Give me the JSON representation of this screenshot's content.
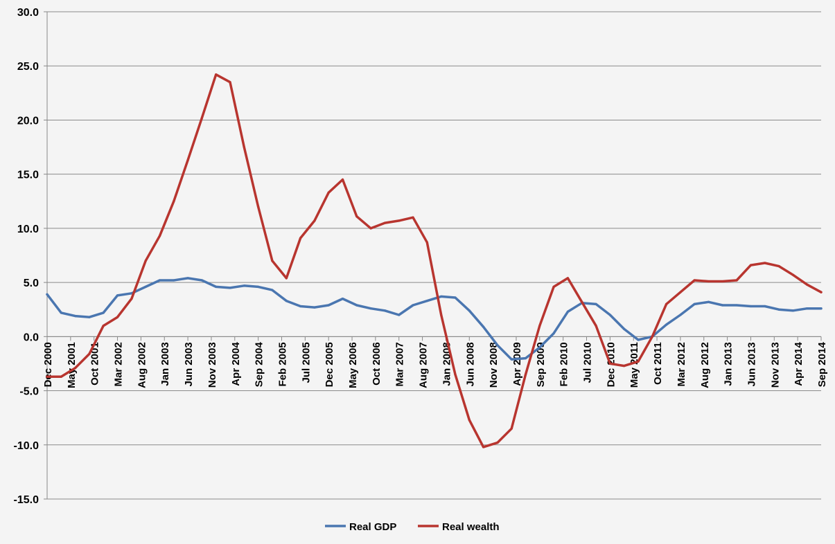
{
  "chart_data": {
    "type": "line",
    "title": "",
    "xlabel": "",
    "ylabel": "",
    "ylim": [
      -15,
      30
    ],
    "ytick_step": 5,
    "ytick_labels": [
      "-15.0",
      "-10.0",
      "-5.0",
      "0.0",
      "5.0",
      "10.0",
      "15.0",
      "20.0",
      "25.0",
      "30.0"
    ],
    "grid": "horizontal",
    "legend_placement": "bottom",
    "x_range": [
      "2000-12",
      "2014-09"
    ],
    "xtick_labels": [
      "Dec 2000",
      "May 2001",
      "Oct 2001",
      "Mar 2002",
      "Aug 2002",
      "Jan 2003",
      "Jun 2003",
      "Nov 2003",
      "Apr 2004",
      "Sep 2004",
      "Feb 2005",
      "Jul 2005",
      "Dec 2005",
      "May 2006",
      "Oct 2006",
      "Mar 2007",
      "Aug 2007",
      "Jan 2008",
      "Jun 2008",
      "Nov 2008",
      "Apr 2009",
      "Sep 2009",
      "Feb 2010",
      "Jul 2010",
      "Dec 2010",
      "May 2011",
      "Oct 2011",
      "Mar 2012",
      "Aug 2012",
      "Jan 2013",
      "Jun 2013",
      "Nov 2013",
      "Apr 2014",
      "Sep 2014"
    ],
    "x": [
      "2000-12",
      "2001-03",
      "2001-06",
      "2001-09",
      "2001-12",
      "2002-03",
      "2002-06",
      "2002-09",
      "2002-12",
      "2003-03",
      "2003-06",
      "2003-09",
      "2003-12",
      "2004-03",
      "2004-06",
      "2004-09",
      "2004-12",
      "2005-03",
      "2005-06",
      "2005-09",
      "2005-12",
      "2006-03",
      "2006-06",
      "2006-09",
      "2006-12",
      "2007-03",
      "2007-06",
      "2007-09",
      "2007-12",
      "2008-03",
      "2008-06",
      "2008-09",
      "2008-12",
      "2009-03",
      "2009-06",
      "2009-09",
      "2009-12",
      "2010-03",
      "2010-06",
      "2010-09",
      "2010-12",
      "2011-03",
      "2011-06",
      "2011-09",
      "2011-12",
      "2012-03",
      "2012-06",
      "2012-09",
      "2012-12",
      "2013-03",
      "2013-06",
      "2013-09",
      "2013-12",
      "2014-03",
      "2014-06",
      "2014-09"
    ],
    "series": [
      {
        "name": "Real GDP",
        "color": "#4a76b0",
        "values": [
          3.9,
          2.2,
          1.9,
          1.8,
          2.2,
          3.8,
          4.0,
          4.6,
          5.2,
          5.2,
          5.4,
          5.2,
          4.6,
          4.5,
          4.7,
          4.6,
          4.3,
          3.3,
          2.8,
          2.7,
          2.9,
          3.5,
          2.9,
          2.6,
          2.4,
          2.0,
          2.9,
          3.3,
          3.7,
          3.6,
          2.4,
          0.9,
          -0.8,
          -2.1,
          -2.0,
          -1.0,
          0.3,
          2.3,
          3.1,
          3.0,
          2.0,
          0.7,
          -0.3,
          0.0,
          1.1,
          2.0,
          3.0,
          3.2,
          2.9,
          2.9,
          2.8,
          2.8,
          2.5,
          2.4,
          2.6,
          2.6
        ]
      },
      {
        "name": "Real wealth",
        "color": "#b8352f",
        "values": [
          -3.7,
          -3.7,
          -2.9,
          -1.6,
          1.0,
          1.8,
          3.5,
          7.0,
          9.3,
          12.5,
          16.3,
          20.2,
          24.2,
          23.5,
          17.5,
          12.0,
          7.0,
          5.4,
          9.1,
          10.7,
          13.3,
          14.5,
          11.1,
          10.0,
          10.5,
          10.7,
          11.0,
          8.7,
          2.0,
          -3.5,
          -7.7,
          -10.2,
          -9.8,
          -8.5,
          -3.5,
          1.0,
          4.6,
          5.4,
          3.2,
          1.0,
          -2.5,
          -2.7,
          -2.3,
          0.0,
          3.0,
          4.1,
          5.2,
          5.1,
          5.1,
          5.2,
          6.6,
          6.8,
          6.5,
          5.7,
          4.8,
          4.1
        ]
      }
    ]
  }
}
